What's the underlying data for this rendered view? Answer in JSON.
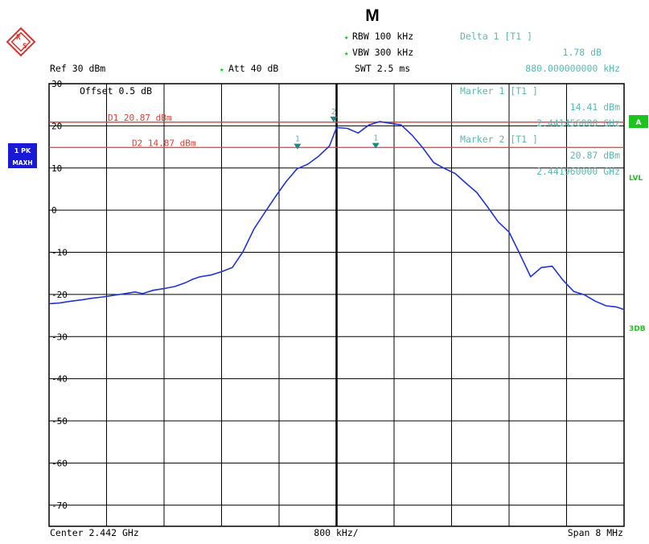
{
  "header": {
    "mode_letter": "M",
    "rbw": "RBW 100 kHz",
    "vbw": "VBW 300 kHz",
    "swt": "SWT 2.5 ms",
    "ref": "Ref  30 dBm",
    "att": "Att  40 dB",
    "delta_title": "Delta 1 [T1 ]",
    "delta_value": "1.78 dB",
    "delta_freq": "880.000000000 kHz"
  },
  "markers_panel": {
    "offset": "Offset  0.5 dB",
    "marker1_title": "Marker 1 [T1 ]",
    "marker1_level": "14.41 dBm",
    "marker1_freq": "2.441456000 GHz",
    "marker2_title": "Marker 2 [T1 ]",
    "marker2_level": "20.87 dBm",
    "marker2_freq": "2.441960000 GHz"
  },
  "side_labels": {
    "trace": "1 PK",
    "detector": "MAXH",
    "a_badge": "A",
    "lvl": "LVL",
    "threedb": "3DB"
  },
  "footer": {
    "center": "Center 2.442 GHz",
    "per_div": "800 kHz/",
    "span": "Span 8 MHz"
  },
  "colors": {
    "trace": "#1f35d6",
    "display_line": "#e8392c",
    "marker_text": "#5ab8b2",
    "marker_symbol": "#1c8a86",
    "side_green": "#1ec41e",
    "side_blue": "#1a1ad6",
    "logo_red": "#d8332c"
  },
  "chart_data": {
    "type": "line",
    "xlabel": "",
    "ylabel": "",
    "x_unit": "GHz",
    "y_unit": "dBm",
    "xlim": [
      2.438,
      2.446
    ],
    "ylim": [
      -75,
      30
    ],
    "y_ticks": [
      30,
      20,
      10,
      0,
      -10,
      -20,
      -30,
      -40,
      -50,
      -60,
      -70
    ],
    "y_tick_labels": [
      "30",
      "20",
      "10",
      "0",
      "-10",
      "-20",
      "-30",
      "-40",
      "-50",
      "-60",
      "-70"
    ],
    "grid": true,
    "display_lines": [
      {
        "label": "D1 20.87 dBm",
        "value": 20.87
      },
      {
        "label": "D2 14.87 dBm",
        "value": 14.87
      }
    ],
    "markers": [
      {
        "label": "1",
        "x": 2.441456,
        "y": 14.41
      },
      {
        "label": "2",
        "x": 2.44196,
        "y": 20.87
      },
      {
        "label": "1",
        "x": 2.442545,
        "y": 14.6
      }
    ],
    "series": [
      {
        "x": [
          2.438,
          2.43815,
          2.4383,
          2.43845,
          2.4386,
          2.43875,
          2.4389,
          2.43905,
          2.4392,
          2.4393,
          2.43945,
          2.4396,
          2.43975,
          2.4399,
          2.44,
          2.4401,
          2.44025,
          2.4404,
          2.44055,
          2.4407,
          2.44085,
          2.441,
          2.44115,
          2.4413,
          2.44145,
          2.4416,
          2.44175,
          2.4419,
          2.442,
          2.44215,
          2.4423,
          2.44245,
          2.4426,
          2.44275,
          2.4429,
          2.44305,
          2.4432,
          2.44335,
          2.4435,
          2.44365,
          2.4438,
          2.44395,
          2.4441,
          2.44425,
          2.4444,
          2.44455,
          2.4447,
          2.44485,
          2.445,
          2.44515,
          2.4453,
          2.44545,
          2.4456,
          2.44575,
          2.4459,
          2.446
        ],
        "values": [
          -22.2,
          -22.0,
          -21.6,
          -21.3,
          -20.9,
          -20.6,
          -20.2,
          -19.8,
          -19.4,
          -19.8,
          -19.0,
          -18.6,
          -18.1,
          -17.2,
          -16.4,
          -15.8,
          -15.4,
          -14.6,
          -13.6,
          -9.8,
          -4.5,
          -0.6,
          3.2,
          6.8,
          9.8,
          10.9,
          12.8,
          15.2,
          19.6,
          19.4,
          18.3,
          20.2,
          21.0,
          20.6,
          20.2,
          17.8,
          14.8,
          11.3,
          9.9,
          8.7,
          6.4,
          4.2,
          0.8,
          -2.8,
          -5.2,
          -10.4,
          -15.8,
          -13.6,
          -13.3,
          -16.6,
          -19.3,
          -20.1,
          -21.6,
          -22.7,
          -23.0,
          -23.6
        ]
      }
    ]
  }
}
